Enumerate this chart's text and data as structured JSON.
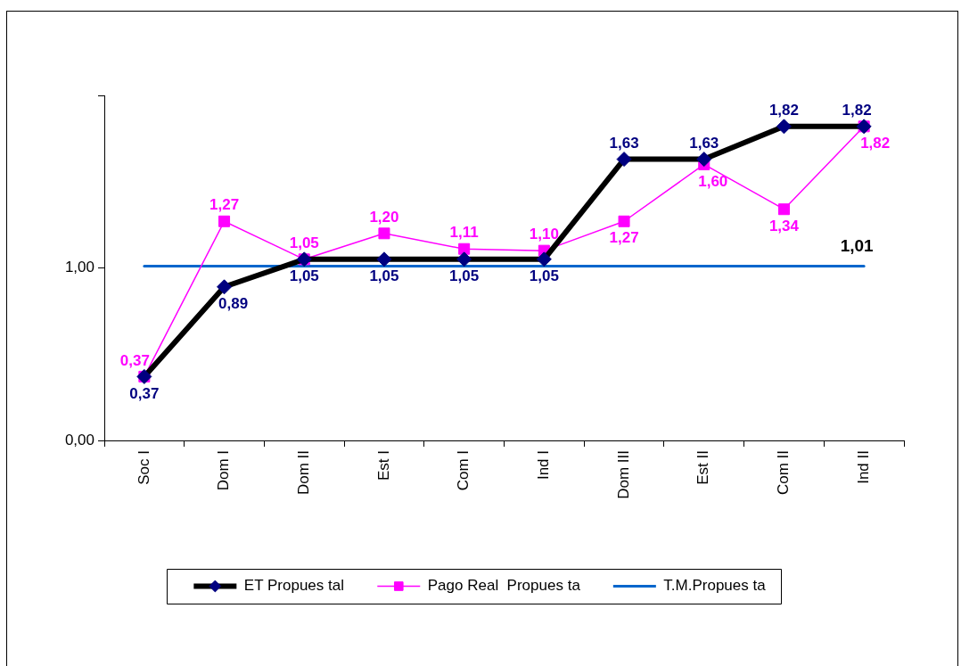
{
  "chart_data": {
    "type": "line",
    "categories": [
      "Soc I",
      "Dom I",
      "Dom II",
      "Est I",
      "Com I",
      "Ind I",
      "Dom III",
      "Est II",
      "Com II",
      "Ind II"
    ],
    "series": [
      {
        "name": "ET Propues tal",
        "color": "#000000",
        "colors": [
          "#000080",
          "#000080",
          "#000080",
          "#000080",
          "#000080",
          "#000080",
          "#000080",
          "#000080",
          "#000080",
          "#000080"
        ],
        "marker": "diamond",
        "values": [
          0.37,
          0.89,
          1.05,
          1.05,
          1.05,
          1.05,
          1.63,
          1.63,
          1.82,
          1.82
        ],
        "value_labels": [
          "0,37",
          "0,89",
          "1,05",
          "1,05",
          "1,05",
          "1,05",
          "1,63",
          "1,63",
          "1,82",
          "1,82"
        ]
      },
      {
        "name": "Pago Real  Propues ta",
        "color": "#ff00ff",
        "marker": "square",
        "values": [
          0.37,
          1.27,
          1.05,
          1.2,
          1.11,
          1.1,
          1.27,
          1.6,
          1.34,
          1.82
        ],
        "value_labels": [
          "0,37",
          "1,27",
          "1,05",
          "1,20",
          "1,11",
          "1,10",
          "1,27",
          "1,60",
          "1,34",
          "1,82"
        ]
      },
      {
        "name": "T.M.Propues ta",
        "color": "#0066cc",
        "marker": "none",
        "values": [
          1.01,
          1.01,
          1.01,
          1.01,
          1.01,
          1.01,
          1.01,
          1.01,
          1.01,
          1.01
        ],
        "value_labels": [
          null,
          null,
          null,
          null,
          null,
          null,
          null,
          null,
          null,
          "1,01"
        ]
      }
    ],
    "ylim": [
      0,
      2
    ],
    "yticks": [
      {
        "value": 0,
        "label": "0,00"
      },
      {
        "value": 1,
        "label": "1,00"
      },
      {
        "value": 2,
        "label": null
      }
    ],
    "grid": false,
    "legend": "bottom"
  }
}
